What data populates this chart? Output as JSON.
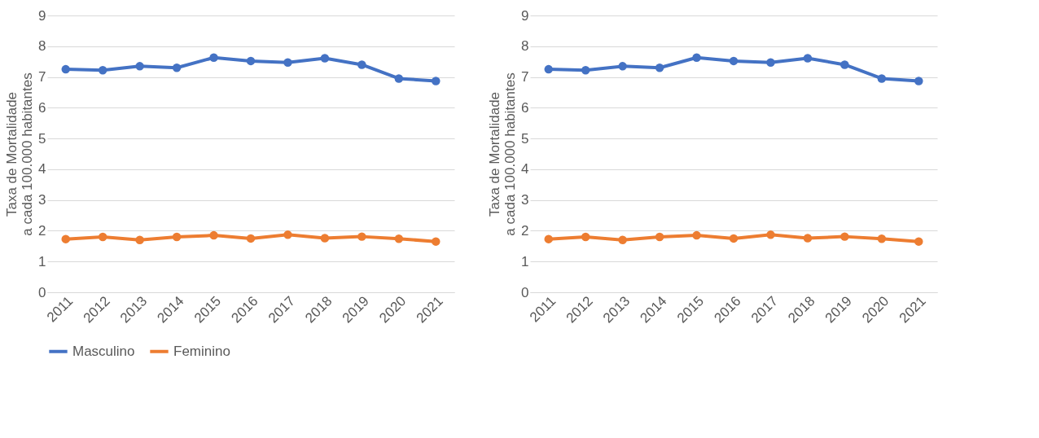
{
  "chart_data": [
    {
      "type": "line",
      "ylabel": "Taxa de Mortalidade\na cada 100.000 habitantes",
      "categories": [
        "2011",
        "2012",
        "2013",
        "2014",
        "2015",
        "2016",
        "2017",
        "2018",
        "2019",
        "2020",
        "2021"
      ],
      "ylim": [
        0,
        9
      ],
      "yticks": [
        0,
        1,
        2,
        3,
        4,
        5,
        6,
        7,
        8,
        9
      ],
      "grid": "y",
      "legend": "bottom",
      "marker": "circle",
      "line_style": "solid",
      "series": [
        {
          "name": "Masculino",
          "color": "#4472c4",
          "values": [
            7.25,
            7.22,
            7.35,
            7.3,
            7.63,
            7.52,
            7.47,
            7.61,
            7.4,
            6.95,
            6.87
          ]
        },
        {
          "name": "Feminino",
          "color": "#ed7d31",
          "values": [
            1.73,
            1.8,
            1.7,
            1.8,
            1.85,
            1.75,
            1.87,
            1.76,
            1.81,
            1.74,
            1.65
          ]
        }
      ]
    },
    {
      "type": "line",
      "ylabel": "Taxa de Mortalidade\na cada 100.000 habitantes",
      "categories": [
        "2011",
        "2012",
        "2013",
        "2014",
        "2015",
        "2016",
        "2017",
        "2018",
        "2019",
        "2020",
        "2021"
      ],
      "ylim": [
        0,
        9
      ],
      "yticks": [
        0,
        1,
        2,
        3,
        4,
        5,
        6,
        7,
        8,
        9
      ],
      "grid": "y",
      "legend": "bottom",
      "marker": "circle",
      "line_style": "solid",
      "series": [
        {
          "name": "Masculino",
          "color": "#4472c4",
          "values": [
            7.25,
            7.22,
            7.35,
            7.3,
            7.63,
            7.52,
            7.47,
            7.61,
            7.4,
            6.95,
            6.87
          ]
        },
        {
          "name": "Feminino",
          "color": "#ed7d31",
          "values": [
            1.73,
            1.8,
            1.7,
            1.8,
            1.85,
            1.75,
            1.87,
            1.76,
            1.81,
            1.74,
            1.65
          ]
        }
      ]
    }
  ]
}
